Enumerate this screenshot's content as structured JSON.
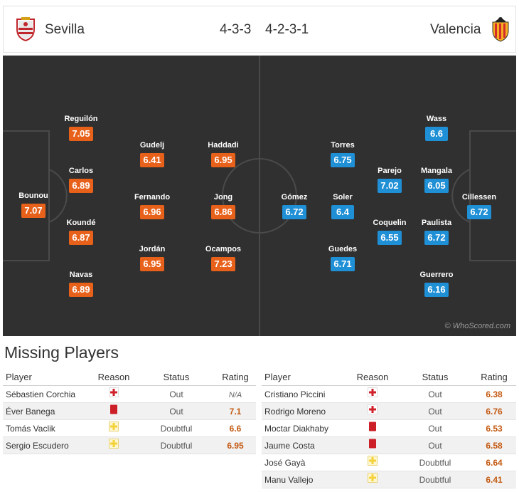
{
  "header": {
    "home_team": "Sevilla",
    "away_team": "Valencia",
    "home_formation": "4-3-3",
    "away_formation": "4-2-3-1"
  },
  "colors": {
    "home_rating_bg": "#e8611a",
    "away_rating_bg": "#1f8fd6",
    "pitch_bg": "#303030",
    "injury_icon": "#d0202a",
    "red_card_icon": "#cc1f27",
    "doubtful_icon": "#f3d23a"
  },
  "pitch": {
    "watermark": "© WhoScored.com",
    "home_players": [
      {
        "name": "Bounou",
        "rating": "7.07"
      },
      {
        "name": "Reguilón",
        "rating": "7.05"
      },
      {
        "name": "Carlos",
        "rating": "6.89"
      },
      {
        "name": "Koundé",
        "rating": "6.87"
      },
      {
        "name": "Navas",
        "rating": "6.89"
      },
      {
        "name": "Gudelj",
        "rating": "6.41"
      },
      {
        "name": "Fernando",
        "rating": "6.96"
      },
      {
        "name": "Jordán",
        "rating": "6.95"
      },
      {
        "name": "Haddadi",
        "rating": "6.95"
      },
      {
        "name": "Jong",
        "rating": "6.86"
      },
      {
        "name": "Ocampos",
        "rating": "7.23"
      }
    ],
    "away_players": [
      {
        "name": "Gómez",
        "rating": "6.72"
      },
      {
        "name": "Torres",
        "rating": "6.75"
      },
      {
        "name": "Soler",
        "rating": "6.4"
      },
      {
        "name": "Guedes",
        "rating": "6.71"
      },
      {
        "name": "Parejo",
        "rating": "7.02"
      },
      {
        "name": "Coquelin",
        "rating": "6.55"
      },
      {
        "name": "Wass",
        "rating": "6.6"
      },
      {
        "name": "Mangala",
        "rating": "6.05"
      },
      {
        "name": "Paulista",
        "rating": "6.72"
      },
      {
        "name": "Guerrero",
        "rating": "6.16"
      },
      {
        "name": "Cillessen",
        "rating": "6.72"
      }
    ]
  },
  "missing": {
    "title": "Missing Players",
    "columns": {
      "player": "Player",
      "reason": "Reason",
      "status": "Status",
      "rating": "Rating"
    },
    "home": [
      {
        "player": "Sébastien Corchia",
        "reason": "injury-icon",
        "status": "Out",
        "rating": "N/A"
      },
      {
        "player": "Éver Banega",
        "reason": "red-card-icon",
        "status": "Out",
        "rating": "7.1"
      },
      {
        "player": "Tomás Vaclik",
        "reason": "doubtful-icon",
        "status": "Doubtful",
        "rating": "6.6"
      },
      {
        "player": "Sergio Escudero",
        "reason": "doubtful-icon",
        "status": "Doubtful",
        "rating": "6.95"
      }
    ],
    "away": [
      {
        "player": "Cristiano Piccini",
        "reason": "injury-icon",
        "status": "Out",
        "rating": "6.38"
      },
      {
        "player": "Rodrigo Moreno",
        "reason": "injury-icon",
        "status": "Out",
        "rating": "6.76"
      },
      {
        "player": "Moctar Diakhaby",
        "reason": "red-card-icon",
        "status": "Out",
        "rating": "6.53"
      },
      {
        "player": "Jaume Costa",
        "reason": "red-card-icon",
        "status": "Out",
        "rating": "6.58"
      },
      {
        "player": "José Gayà",
        "reason": "doubtful-icon",
        "status": "Doubtful",
        "rating": "6.64"
      },
      {
        "player": "Manu Vallejo",
        "reason": "doubtful-icon",
        "status": "Doubtful",
        "rating": "6.41"
      }
    ]
  }
}
